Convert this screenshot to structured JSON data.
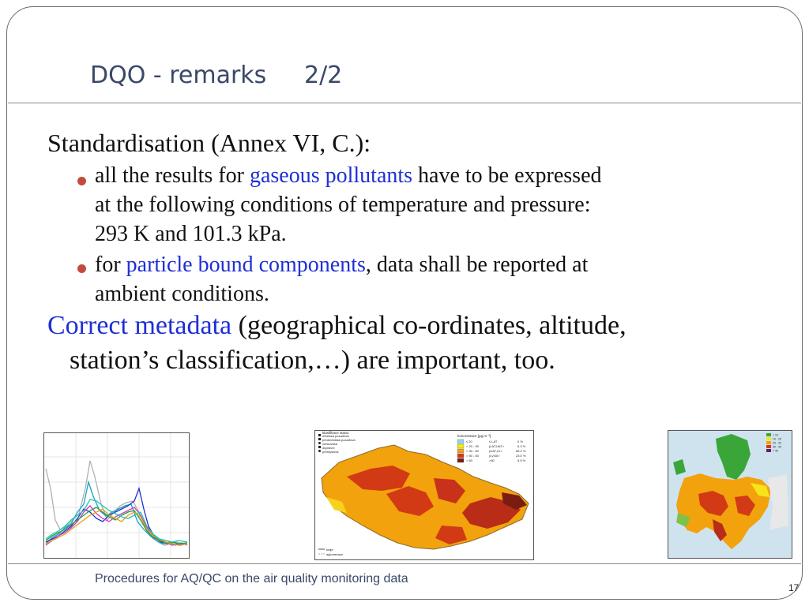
{
  "slide": {
    "title": "DQO - remarks     2/2",
    "main_heading": "Standardisation (Annex VI, C.):",
    "bullet1": {
      "pre": "all the results for ",
      "highlight": "gaseous pollutants",
      "post": " have to be expressed",
      "line2": "at the following conditions of temperature and pressure:",
      "line3": "293 K and 101.3 kPa."
    },
    "bullet2": {
      "pre": "for ",
      "highlight": "particle bound components",
      "post": ", data shall be reported at",
      "line2": "ambient conditions."
    },
    "metadata": {
      "highlight": "Correct metadata",
      "post": " (geographical co-ordinates, altitude,",
      "line2": "station’s classification,…) are important, too."
    },
    "footer": "Procedures for AQ/QC on the air quality monitoring data",
    "page_number": "17",
    "highlight_color": "#1f2fd6",
    "bullet_color": "#c24b3d",
    "images": {
      "map_czech": {
        "legend_title": "koncentrace [μg.m⁻³]",
        "station_heading": "klasifikace stanic",
        "station_types": [
          "městská pozaďová",
          "předměstská pozaďová",
          "venkovská",
          "dopravní",
          "průmyslová"
        ],
        "legend_rows": [
          {
            "range": "≤ 20",
            "label": "≤ LAT",
            "pct": "0 %"
          },
          {
            "range": "> 20 - 30",
            "label": "(LAT,UAT>",
            "pct": "6.3 %"
          },
          {
            "range": "> 30 - 50",
            "label": "(UAT,LV>",
            "pct": "65.2 %"
          },
          {
            "range": "> 50 - 60",
            "label": "(LV,60>",
            "pct": "23.0 %"
          },
          {
            "range": "> 60",
            "label": ">60",
            "pct": "5.5 %"
          }
        ],
        "boundary_labels": [
          "kraje",
          "aglomerace"
        ]
      },
      "map_europe": {
        "legend": [
          "< 10",
          "10 - 20",
          "20 - 30",
          "30 - 40",
          "> 40"
        ]
      }
    }
  }
}
